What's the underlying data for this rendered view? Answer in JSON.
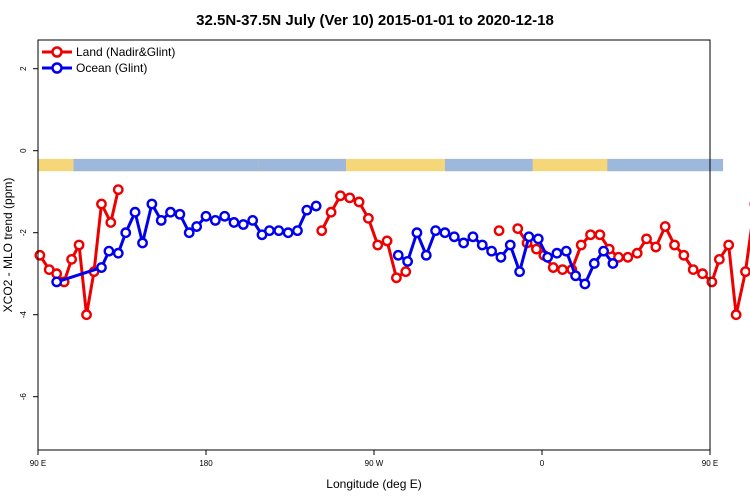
{
  "chart_data": {
    "type": "line",
    "title": "32.5N-37.5N July (Ver 10)   2015-01-01 to 2020-12-18",
    "xlabel": "Longitude (deg E)",
    "ylabel": "XCO2 - MLO trend (ppm)",
    "xlim": [
      90,
      450
    ],
    "ylim": [
      -7.3,
      2.7
    ],
    "x_ticks": [
      {
        "value": 90,
        "label": "90 E"
      },
      {
        "value": 180,
        "label": "180"
      },
      {
        "value": 270,
        "label": "90 W"
      },
      {
        "value": 360,
        "label": "0"
      },
      {
        "value": 450,
        "label": "90 E"
      },
      {
        "value": 540,
        "label": "180"
      }
    ],
    "y_ticks": [
      {
        "value": 2,
        "label": "2"
      },
      {
        "value": 0,
        "label": "0"
      },
      {
        "value": -2,
        "label": "-2"
      },
      {
        "value": -4,
        "label": "-4"
      },
      {
        "value": -6,
        "label": "-6"
      }
    ],
    "grid": false,
    "legend_position": "top-left",
    "land_ocean_strip": {
      "y_top": -0.2,
      "y_bottom": -0.5,
      "land_color": "#f5d77a",
      "ocean_color": "#9db8dc"
    },
    "series": [
      {
        "name": "Land (Nadir&Glint)",
        "color": "#ee0000",
        "x": [
          91,
          96,
          100,
          104,
          108,
          112,
          116,
          120,
          124,
          129,
          133,
          137,
          142,
          182,
          187,
          192,
          197,
          202,
          207,
          212,
          217,
          222,
          227,
          232,
          237,
          242,
          247,
          252,
          257,
          262,
          267,
          272,
          277,
          282,
          287,
          292,
          297,
          302,
          307,
          312,
          317,
          322,
          327,
          332,
          337,
          342,
          347,
          352,
          357,
          361,
          366,
          371,
          376,
          381,
          386,
          391,
          396,
          401,
          406,
          411,
          416,
          421,
          426,
          431,
          436,
          441,
          446,
          451,
          455,
          460,
          464,
          469,
          474,
          478
        ],
        "values": [
          -2.55,
          -2.9,
          -3.0,
          -3.2,
          -2.65,
          -2.3,
          -4.0,
          -2.95,
          -1.3,
          -1.75,
          -0.95,
          null,
          null,
          null,
          null,
          null,
          null,
          null,
          null,
          null,
          null,
          null,
          null,
          null,
          null,
          -1.95,
          -1.5,
          -1.1,
          -1.15,
          -1.25,
          -1.65,
          -2.3,
          -2.2,
          -3.1,
          -2.95,
          null,
          null,
          null,
          null,
          null,
          null,
          null,
          null,
          null,
          -1.95,
          null,
          -1.9,
          -2.25,
          -2.4,
          -2.55,
          -2.85,
          -2.9,
          -2.9,
          -2.3,
          -2.05,
          -2.05,
          -2.4,
          -2.6,
          -2.6,
          -2.5,
          -2.15,
          -2.35,
          -1.85,
          -2.3,
          -2.55,
          -2.9,
          -3.0,
          -3.2,
          -2.65,
          -2.3,
          -4.0,
          -2.95,
          -1.3,
          -1.75
        ],
        "x_extra": [
          478
        ],
        "values_extra": [
          -0.95
        ]
      },
      {
        "name": "Ocean (Glint)",
        "color": "#0000ee",
        "x": [
          100,
          124,
          128,
          133,
          137,
          142,
          146,
          151,
          156,
          161,
          166,
          171,
          175,
          180,
          185,
          190,
          195,
          200,
          205,
          210,
          214,
          219,
          224,
          229,
          234,
          239,
          243,
          248,
          256,
          263,
          268,
          273,
          278,
          283,
          288,
          293,
          298,
          303,
          308,
          313,
          318,
          323,
          328,
          333,
          338,
          343,
          348,
          353,
          358,
          363,
          368,
          373,
          378,
          383,
          388,
          393,
          398
        ],
        "values": [
          -3.2,
          -2.85,
          -2.45,
          -2.5,
          -2.0,
          -1.5,
          -2.25,
          -1.3,
          -1.7,
          -1.5,
          -1.55,
          -2.0,
          -1.85,
          -1.6,
          -1.7,
          -1.6,
          -1.75,
          -1.8,
          -1.7,
          -2.05,
          -1.95,
          -1.95,
          -2.0,
          -1.95,
          -1.45,
          -1.35,
          null,
          null,
          null,
          null,
          null,
          null,
          null,
          -2.55,
          -2.7,
          -2.0,
          -2.55,
          -1.95,
          -2.0,
          -2.1,
          -2.25,
          -2.1,
          -2.3,
          -2.45,
          -2.6,
          -2.3,
          -2.95,
          -2.1,
          -2.15,
          -2.6,
          -2.5,
          -2.45,
          -3.05,
          -3.25,
          -2.75,
          -2.45,
          -2.75
        ]
      }
    ]
  }
}
